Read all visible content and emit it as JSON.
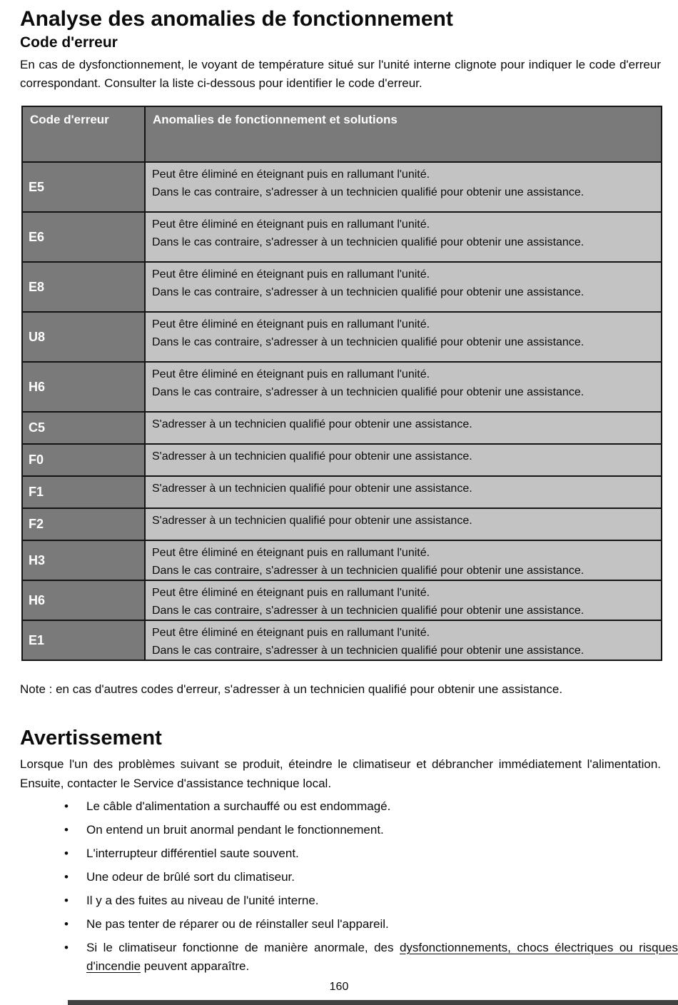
{
  "page": {
    "title": "Analyse des anomalies de fonctionnement",
    "subtitle": "Code d'erreur",
    "intro": "En cas de dysfonctionnement, le voyant de température situé sur l'unité interne clignote pour indiquer le code d'erreur correspondant. Consulter la liste ci-dessous pour identifier le code d'erreur.",
    "page_number": "160"
  },
  "table": {
    "headers": {
      "code": "Code d'erreur",
      "solution": "Anomalies de fonctionnement et solutions"
    },
    "rows": [
      {
        "code": "E5",
        "lines": [
          "Peut être éliminé en éteignant puis en rallumant l'unité.",
          "Dans le cas contraire, s'adresser à un technicien qualifié pour obtenir une assistance."
        ]
      },
      {
        "code": "E6",
        "lines": [
          "Peut être éliminé en éteignant puis en rallumant l'unité.",
          "Dans le cas contraire, s'adresser à un technicien qualifié pour obtenir une assistance."
        ]
      },
      {
        "code": "E8",
        "lines": [
          "Peut être éliminé en éteignant puis en rallumant l'unité.",
          "Dans le cas contraire, s'adresser à un technicien qualifié pour obtenir une assistance."
        ]
      },
      {
        "code": "U8",
        "lines": [
          "Peut être éliminé en éteignant puis en rallumant l'unité.",
          "Dans le cas contraire, s'adresser à un technicien qualifié pour obtenir une assistance."
        ]
      },
      {
        "code": "H6",
        "lines": [
          "Peut être éliminé en éteignant puis en rallumant l'unité.",
          "Dans le cas contraire, s'adresser à un technicien qualifié pour obtenir une assistance."
        ]
      },
      {
        "code": "C5",
        "lines": [
          "S'adresser à un technicien qualifié pour obtenir une assistance."
        ]
      },
      {
        "code": "F0",
        "lines": [
          "S'adresser à un technicien qualifié pour obtenir une assistance."
        ]
      },
      {
        "code": "F1",
        "lines": [
          "S'adresser à un technicien qualifié pour obtenir une assistance."
        ]
      },
      {
        "code": "F2",
        "lines": [
          "S'adresser à un technicien qualifié pour obtenir une assistance."
        ]
      },
      {
        "code": "H3",
        "lines": [
          "Peut être éliminé en éteignant puis en rallumant l'unité.",
          "Dans le cas contraire, s'adresser à un technicien qualifié pour obtenir une assistance."
        ]
      },
      {
        "code": "H6",
        "lines": [
          "Peut être éliminé en éteignant puis en rallumant l'unité.",
          "Dans le cas contraire, s'adresser à un technicien qualifié pour obtenir une assistance."
        ]
      },
      {
        "code": "E1",
        "lines": [
          "Peut être éliminé en éteignant puis en rallumant l'unité.",
          "Dans le cas contraire, s'adresser à un technicien qualifié pour obtenir une assistance."
        ]
      }
    ]
  },
  "note": "Note : en cas d'autres codes d'erreur, s'adresser à un technicien qualifié pour obtenir une assistance.",
  "warning": {
    "title": "Avertissement",
    "intro": "Lorsque l'un des problèmes suivant se produit, éteindre le climatiseur et débrancher immédiatement l'alimentation. Ensuite, contacter le Service d'assistance technique local.",
    "bullets": [
      "Le câble d'alimentation a surchauffé ou est endommagé.",
      "On entend un bruit anormal pendant le fonctionnement.",
      "L'interrupteur différentiel saute souvent.",
      "Une odeur de brûlé sort du climatiseur.",
      "Il y a des fuites au niveau de l'unité interne.",
      "Ne pas tenter de réparer ou de réinstaller seul l'appareil."
    ],
    "last_bullet": {
      "pre": "Si le climatiseur fonctionne de manière anormale, des ",
      "underlined": "dysfonctionnements, chocs électriques ou risques d'incendie",
      "post": " peuvent apparaître."
    }
  },
  "colors": {
    "table_header_bg": "#7a7a7a",
    "code_cell_bg": "#7a7a7a",
    "solution_cell_bg": "#c3c3c3",
    "table_border": "#141414",
    "footer_bar": "#414141"
  }
}
